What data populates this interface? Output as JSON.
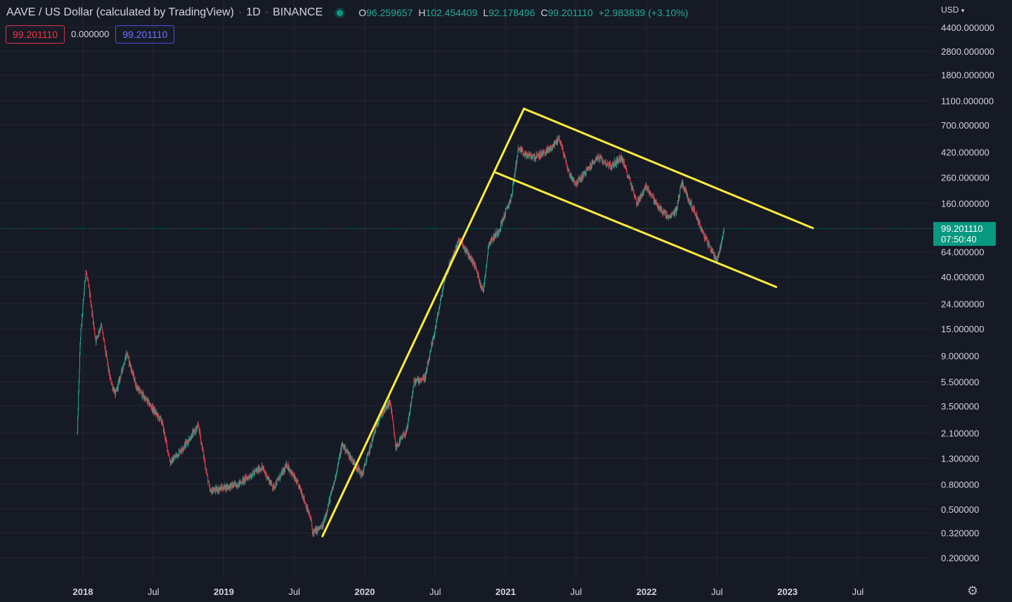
{
  "header": {
    "symbol": "AAVE / US Dollar (calculated by TradingView)",
    "sep1": "·",
    "interval": "1D",
    "sep2": "·",
    "exchange": "BINANCE",
    "ohlc": {
      "o_label": "O",
      "o": "96.259657",
      "h_label": "H",
      "h": "102.454409",
      "l_label": "L",
      "l": "92.178496",
      "c_label": "C",
      "c": "99.201110",
      "change": "+2.983839 (+3.10%)"
    }
  },
  "price_boxes": {
    "sell": "99.201110",
    "spread": "0.000000",
    "buy": "99.201110"
  },
  "price_axis": {
    "currency": "USD",
    "currency_caret": "▾",
    "last_price": "99.201110",
    "countdown": "07:50:40",
    "ticks": [
      "4400.000000",
      "2800.000000",
      "1800.000000",
      "1100.000000",
      "700.000000",
      "420.000000",
      "260.000000",
      "160.000000",
      "64.000000",
      "40.000000",
      "24.000000",
      "15.000000",
      "9.000000",
      "5.500000",
      "3.500000",
      "2.100000",
      "1.300000",
      "0.800000",
      "0.500000",
      "0.320000",
      "0.200000"
    ]
  },
  "time_axis": {
    "labels": [
      {
        "text": "2018",
        "year": true,
        "t": 2018.0
      },
      {
        "text": "Jul",
        "year": false,
        "t": 2018.5
      },
      {
        "text": "2019",
        "year": true,
        "t": 2019.0
      },
      {
        "text": "Jul",
        "year": false,
        "t": 2019.5
      },
      {
        "text": "2020",
        "year": true,
        "t": 2020.0
      },
      {
        "text": "Jul",
        "year": false,
        "t": 2020.5
      },
      {
        "text": "2021",
        "year": true,
        "t": 2021.0
      },
      {
        "text": "Jul",
        "year": false,
        "t": 2021.5
      },
      {
        "text": "2022",
        "year": true,
        "t": 2022.0
      },
      {
        "text": "Jul",
        "year": false,
        "t": 2022.5
      },
      {
        "text": "2023",
        "year": true,
        "t": 2023.0
      },
      {
        "text": "Jul",
        "year": false,
        "t": 2023.5
      }
    ]
  },
  "colors": {
    "background": "#161a25",
    "up": "#22ab94",
    "down": "#f23645",
    "drawing": "#ffeb3b",
    "grid": "#242733",
    "price_line": "#089981"
  },
  "chart_data": {
    "type": "candlestick",
    "scale": "log",
    "last_price": 99.20111,
    "anchors": [
      {
        "t": 2017.96,
        "price": 2.1
      },
      {
        "t": 2017.98,
        "price": 12
      },
      {
        "t": 2018.02,
        "price": 45
      },
      {
        "t": 2018.05,
        "price": 28
      },
      {
        "t": 2018.09,
        "price": 12
      },
      {
        "t": 2018.13,
        "price": 16
      },
      {
        "t": 2018.19,
        "price": 6
      },
      {
        "t": 2018.23,
        "price": 4.3
      },
      {
        "t": 2018.31,
        "price": 9.5
      },
      {
        "t": 2018.38,
        "price": 5
      },
      {
        "t": 2018.48,
        "price": 3.5
      },
      {
        "t": 2018.56,
        "price": 2.6
      },
      {
        "t": 2018.62,
        "price": 1.2
      },
      {
        "t": 2018.71,
        "price": 1.6
      },
      {
        "t": 2018.82,
        "price": 2.4
      },
      {
        "t": 2018.9,
        "price": 0.7
      },
      {
        "t": 2019.0,
        "price": 0.75
      },
      {
        "t": 2019.1,
        "price": 0.8
      },
      {
        "t": 2019.27,
        "price": 1.1
      },
      {
        "t": 2019.35,
        "price": 0.75
      },
      {
        "t": 2019.45,
        "price": 1.15
      },
      {
        "t": 2019.55,
        "price": 0.7
      },
      {
        "t": 2019.62,
        "price": 0.4
      },
      {
        "t": 2019.63,
        "price": 0.32
      },
      {
        "t": 2019.7,
        "price": 0.36
      },
      {
        "t": 2019.78,
        "price": 0.8
      },
      {
        "t": 2019.84,
        "price": 1.7
      },
      {
        "t": 2019.98,
        "price": 0.95
      },
      {
        "t": 2020.1,
        "price": 2.8
      },
      {
        "t": 2020.18,
        "price": 3.8
      },
      {
        "t": 2020.22,
        "price": 1.6
      },
      {
        "t": 2020.3,
        "price": 2.2
      },
      {
        "t": 2020.35,
        "price": 5.5
      },
      {
        "t": 2020.43,
        "price": 6.0
      },
      {
        "t": 2020.5,
        "price": 15
      },
      {
        "t": 2020.57,
        "price": 40
      },
      {
        "t": 2020.67,
        "price": 80
      },
      {
        "t": 2020.78,
        "price": 50
      },
      {
        "t": 2020.84,
        "price": 30
      },
      {
        "t": 2020.88,
        "price": 75
      },
      {
        "t": 2020.95,
        "price": 95
      },
      {
        "t": 2021.04,
        "price": 180
      },
      {
        "t": 2021.09,
        "price": 450
      },
      {
        "t": 2021.13,
        "price": 400
      },
      {
        "t": 2021.22,
        "price": 380
      },
      {
        "t": 2021.32,
        "price": 450
      },
      {
        "t": 2021.38,
        "price": 550
      },
      {
        "t": 2021.45,
        "price": 280
      },
      {
        "t": 2021.5,
        "price": 230
      },
      {
        "t": 2021.58,
        "price": 300
      },
      {
        "t": 2021.65,
        "price": 380
      },
      {
        "t": 2021.75,
        "price": 320
      },
      {
        "t": 2021.82,
        "price": 380
      },
      {
        "t": 2021.88,
        "price": 250
      },
      {
        "t": 2021.93,
        "price": 160
      },
      {
        "t": 2022.0,
        "price": 220
      },
      {
        "t": 2022.08,
        "price": 150
      },
      {
        "t": 2022.16,
        "price": 120
      },
      {
        "t": 2022.21,
        "price": 140
      },
      {
        "t": 2022.25,
        "price": 240
      },
      {
        "t": 2022.3,
        "price": 170
      },
      {
        "t": 2022.35,
        "price": 130
      },
      {
        "t": 2022.4,
        "price": 90
      },
      {
        "t": 2022.45,
        "price": 70
      },
      {
        "t": 2022.48,
        "price": 60
      },
      {
        "t": 2022.5,
        "price": 55
      },
      {
        "t": 2022.53,
        "price": 75
      },
      {
        "t": 2022.55,
        "price": 99.2
      }
    ],
    "trendlines": [
      {
        "from": {
          "t": 2019.7,
          "price": 0.3
        },
        "to": {
          "t": 2021.13,
          "price": 950
        }
      },
      {
        "from": {
          "t": 2021.13,
          "price": 950
        },
        "to": {
          "t": 2023.18,
          "price": 100
        }
      },
      {
        "from": {
          "t": 2020.93,
          "price": 285
        },
        "to": {
          "t": 2022.92,
          "price": 33
        }
      }
    ]
  }
}
